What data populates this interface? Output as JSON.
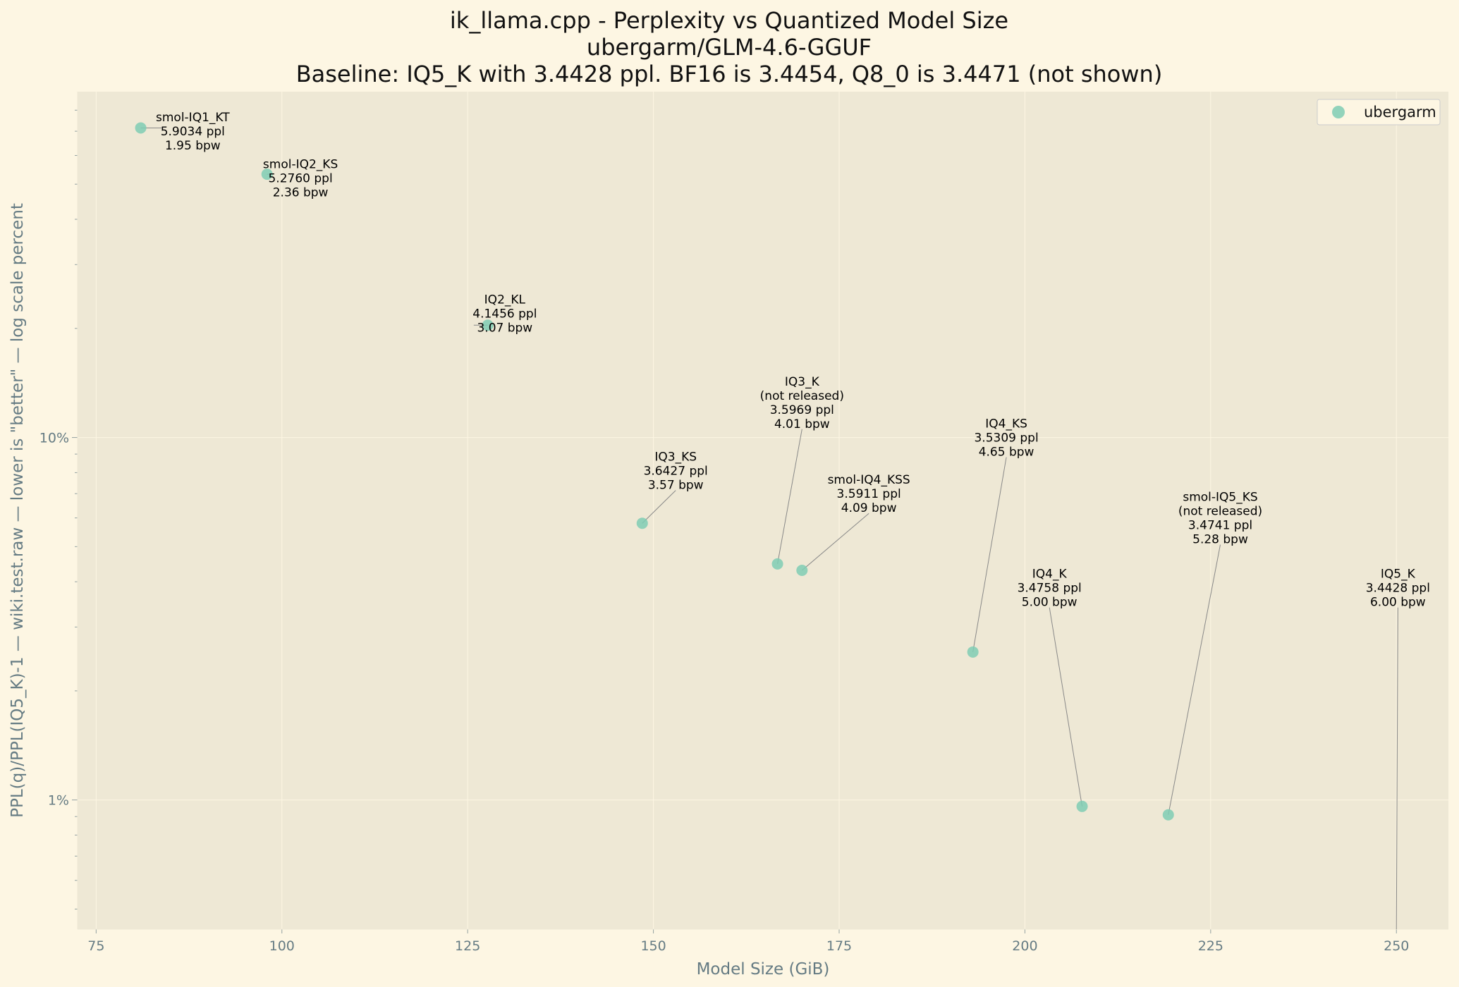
{
  "chart_data": {
    "type": "scatter",
    "title_lines": [
      "ik_llama.cpp - Perplexity vs Quantized Model Size",
      "ubergarm/GLM-4.6-GGUF",
      "Baseline: IQ5_K with 3.4428 ppl. BF16 is 3.4454, Q8_0 is 3.4471 (not shown)"
    ],
    "xlabel": "Model Size (GiB)",
    "ylabel": "PPL(q)/PPL(IQ5_K)-1 — wiki.test.raw — lower is \"better\" — log scale percent",
    "xlim": [
      72.5,
      257
    ],
    "ylim_percent": [
      0.44,
      90
    ],
    "x_ticks": [
      75,
      100,
      125,
      150,
      175,
      200,
      225,
      250
    ],
    "y_major_ticks": [
      {
        "value": 1,
        "label": "1%"
      },
      {
        "value": 10,
        "label": "10%"
      }
    ],
    "y_minor_ticks": [
      0.5,
      0.6,
      0.7,
      0.8,
      0.9,
      2,
      3,
      4,
      5,
      6,
      7,
      8,
      9,
      20,
      30,
      40,
      50,
      60,
      70,
      80
    ],
    "legend": {
      "label": "ubergarm",
      "location": "top-right"
    },
    "colors": {
      "point": "#7fcdb4",
      "leader": "#888888",
      "plot_bg": "#eee8d5",
      "page_bg": "#fdf6e3",
      "text": "#657b83"
    },
    "series": [
      {
        "name": "ubergarm",
        "points": [
          {
            "x": 81.0,
            "y_percent": 71.48,
            "lines": [
              "smol-IQ1_KT",
              "5.9034 ppl",
              "1.95 bpw"
            ],
            "label_x": 88.0,
            "label_y_percent": 70.0
          },
          {
            "x": 98.0,
            "y_percent": 53.26,
            "lines": [
              "smol-IQ2_KS",
              "5.2760 ppl",
              "2.36 bpw"
            ],
            "label_x": 102.5,
            "label_y_percent": 52.0
          },
          {
            "x": 127.7,
            "y_percent": 20.41,
            "lines": [
              "IQ2_KL",
              "4.1456 ppl",
              "3.07 bpw"
            ],
            "label_x": 130.0,
            "label_y_percent": 22.0
          },
          {
            "x": 148.5,
            "y_percent": 5.8,
            "lines": [
              "IQ3_KS",
              "3.6427 ppl",
              "3.57 bpw"
            ],
            "label_x": 153.0,
            "label_y_percent": 8.1
          },
          {
            "x": 166.7,
            "y_percent": 4.48,
            "lines": [
              "IQ3_K",
              "(not released)",
              "3.5969 ppl",
              "4.01 bpw"
            ],
            "label_x": 170.0,
            "label_y_percent": 12.5
          },
          {
            "x": 170.0,
            "y_percent": 4.3,
            "lines": [
              "smol-IQ4_KSS",
              "3.5911 ppl",
              "4.09 bpw"
            ],
            "label_x": 179.0,
            "label_y_percent": 7.0
          },
          {
            "x": 193.0,
            "y_percent": 2.56,
            "lines": [
              "IQ4_KS",
              "3.5309 ppl",
              "4.65 bpw"
            ],
            "label_x": 197.5,
            "label_y_percent": 10.0
          },
          {
            "x": 207.7,
            "y_percent": 0.96,
            "lines": [
              "IQ4_K",
              "3.4758 ppl",
              "5.00 bpw"
            ],
            "label_x": 203.3,
            "label_y_percent": 3.85
          },
          {
            "x": 219.3,
            "y_percent": 0.91,
            "lines": [
              "smol-IQ5_KS",
              "(not released)",
              "3.4741 ppl",
              "5.28 bpw"
            ],
            "label_x": 226.3,
            "label_y_percent": 6.0
          },
          {
            "x": 250.0,
            "y_percent": 0.0,
            "lines": [
              "IQ5_K",
              "3.4428 ppl",
              "6.00 bpw"
            ],
            "label_x": 250.2,
            "label_y_percent": 3.85
          }
        ]
      }
    ]
  }
}
